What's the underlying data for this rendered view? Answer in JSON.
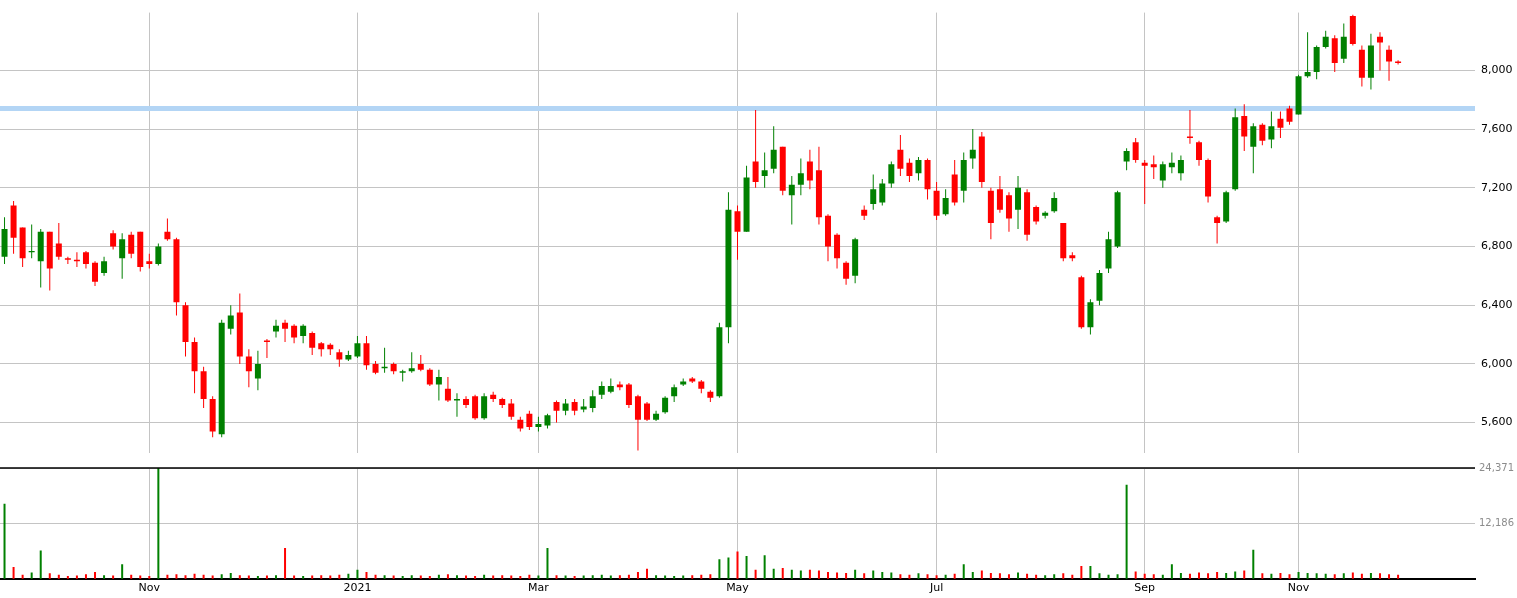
{
  "chart_data": [
    {
      "type": "candlestick",
      "categories": [
        null,
        null,
        null,
        null,
        null,
        null,
        null,
        null,
        null,
        null,
        null,
        null,
        null,
        null,
        null,
        null,
        null,
        null,
        null,
        null,
        null,
        null,
        null,
        null,
        null,
        null,
        null,
        null,
        null,
        null,
        null,
        null,
        null,
        null,
        null,
        null,
        null,
        null,
        null,
        null,
        null,
        null,
        null,
        null,
        null,
        null,
        null,
        null,
        null,
        null,
        null,
        null,
        null,
        null,
        null,
        null,
        null,
        null,
        null,
        null,
        null,
        null,
        null,
        null,
        null,
        null,
        null,
        null,
        null,
        null,
        null,
        null,
        null,
        null,
        null,
        null,
        null,
        null,
        null,
        null,
        null,
        null,
        null,
        null,
        null,
        null,
        null,
        null,
        null,
        null,
        null,
        null,
        null,
        null,
        null,
        null,
        null,
        null,
        null,
        null,
        null,
        null,
        null,
        null,
        null,
        null,
        null,
        null,
        null,
        null,
        null,
        null,
        null,
        null,
        null,
        null,
        null,
        null,
        null,
        null,
        null,
        null,
        null,
        null,
        null,
        null,
        null,
        null,
        null,
        null,
        null,
        null,
        null,
        null,
        null,
        null,
        null,
        null,
        null,
        null,
        null,
        null,
        null,
        null,
        null,
        null,
        null,
        null,
        null,
        null,
        null,
        null,
        null,
        null,
        null,
        null,
        null,
        null,
        null,
        null,
        null,
        null,
        null
      ],
      "ohlc": [
        [
          6730,
          7000,
          6680,
          6920
        ],
        [
          7080,
          7110,
          6750,
          6860
        ],
        [
          6930,
          6930,
          6660,
          6720
        ],
        [
          6760,
          6950,
          6720,
          6770
        ],
        [
          6700,
          6920,
          6520,
          6900
        ],
        [
          6900,
          6900,
          6500,
          6650
        ],
        [
          6820,
          6960,
          6710,
          6730
        ],
        [
          6720,
          6730,
          6680,
          6710
        ],
        [
          6710,
          6760,
          6660,
          6700
        ],
        [
          6760,
          6770,
          6650,
          6680
        ],
        [
          6690,
          6700,
          6530,
          6560
        ],
        [
          6620,
          6730,
          6600,
          6700
        ],
        [
          6890,
          6910,
          6780,
          6800
        ],
        [
          6720,
          6890,
          6580,
          6850
        ],
        [
          6880,
          6900,
          6720,
          6750
        ],
        [
          6900,
          6900,
          6630,
          6660
        ],
        [
          6700,
          6750,
          6650,
          6680
        ],
        [
          6680,
          6820,
          6670,
          6800
        ],
        [
          6900,
          6990,
          6840,
          6850
        ],
        [
          6850,
          6860,
          6330,
          6420
        ],
        [
          6400,
          6420,
          6050,
          6150
        ],
        [
          6150,
          6180,
          5800,
          5950
        ],
        [
          5950,
          5980,
          5700,
          5760
        ],
        [
          5760,
          5780,
          5500,
          5540
        ],
        [
          5520,
          6300,
          5500,
          6280
        ],
        [
          6240,
          6400,
          6200,
          6330
        ],
        [
          6350,
          6480,
          6000,
          6050
        ],
        [
          6050,
          6100,
          5840,
          5950
        ],
        [
          5900,
          6090,
          5820,
          6000
        ],
        [
          6160,
          6170,
          6040,
          6150
        ],
        [
          6220,
          6300,
          6180,
          6260
        ],
        [
          6280,
          6300,
          6150,
          6240
        ],
        [
          6260,
          6270,
          6140,
          6180
        ],
        [
          6190,
          6270,
          6140,
          6260
        ],
        [
          6210,
          6220,
          6060,
          6110
        ],
        [
          6140,
          6150,
          6050,
          6100
        ],
        [
          6130,
          6140,
          6060,
          6100
        ],
        [
          6080,
          6100,
          5980,
          6030
        ],
        [
          6030,
          6090,
          6020,
          6060
        ],
        [
          6050,
          6190,
          6040,
          6140
        ],
        [
          6140,
          6190,
          5960,
          5990
        ],
        [
          6000,
          6020,
          5930,
          5940
        ],
        [
          5970,
          6110,
          5940,
          5980
        ],
        [
          6000,
          6010,
          5930,
          5950
        ],
        [
          5940,
          5960,
          5880,
          5950
        ],
        [
          5950,
          6080,
          5940,
          5970
        ],
        [
          6000,
          6060,
          5950,
          5960
        ],
        [
          5960,
          5970,
          5850,
          5860
        ],
        [
          5860,
          5960,
          5750,
          5910
        ],
        [
          5830,
          5910,
          5740,
          5750
        ],
        [
          5750,
          5800,
          5640,
          5760
        ],
        [
          5760,
          5780,
          5700,
          5720
        ],
        [
          5780,
          5790,
          5620,
          5630
        ],
        [
          5630,
          5800,
          5620,
          5780
        ],
        [
          5790,
          5810,
          5740,
          5760
        ],
        [
          5760,
          5770,
          5700,
          5720
        ],
        [
          5730,
          5760,
          5620,
          5640
        ],
        [
          5620,
          5640,
          5540,
          5560
        ],
        [
          5660,
          5680,
          5550,
          5570
        ],
        [
          5570,
          5640,
          5540,
          5590
        ],
        [
          5580,
          5660,
          5560,
          5650
        ],
        [
          5740,
          5750,
          5600,
          5680
        ],
        [
          5680,
          5760,
          5650,
          5730
        ],
        [
          5740,
          5760,
          5650,
          5680
        ],
        [
          5690,
          5760,
          5670,
          5710
        ],
        [
          5700,
          5820,
          5670,
          5780
        ],
        [
          5790,
          5880,
          5760,
          5850
        ],
        [
          5810,
          5900,
          5800,
          5850
        ],
        [
          5860,
          5880,
          5820,
          5840
        ],
        [
          5860,
          5870,
          5700,
          5720
        ],
        [
          5780,
          5790,
          5410,
          5620
        ],
        [
          5730,
          5740,
          5610,
          5620
        ],
        [
          5620,
          5680,
          5610,
          5660
        ],
        [
          5670,
          5780,
          5660,
          5770
        ],
        [
          5780,
          5860,
          5740,
          5840
        ],
        [
          5860,
          5900,
          5850,
          5880
        ],
        [
          5900,
          5910,
          5870,
          5880
        ],
        [
          5880,
          5890,
          5800,
          5830
        ],
        [
          5810,
          5820,
          5740,
          5770
        ],
        [
          5780,
          6280,
          5770,
          6250
        ],
        [
          6250,
          7170,
          6140,
          7050
        ],
        [
          7040,
          7080,
          6710,
          6900
        ],
        [
          6900,
          7350,
          6900,
          7270
        ],
        [
          7380,
          7730,
          7200,
          7240
        ],
        [
          7280,
          7440,
          7200,
          7320
        ],
        [
          7330,
          7620,
          7300,
          7460
        ],
        [
          7480,
          7480,
          7150,
          7180
        ],
        [
          7150,
          7280,
          6950,
          7220
        ],
        [
          7220,
          7400,
          7150,
          7300
        ],
        [
          7380,
          7460,
          7190,
          7250
        ],
        [
          7320,
          7480,
          6950,
          7000
        ],
        [
          7010,
          7020,
          6700,
          6800
        ],
        [
          6880,
          6890,
          6650,
          6720
        ],
        [
          6690,
          6700,
          6540,
          6580
        ],
        [
          6600,
          6860,
          6550,
          6850
        ],
        [
          7050,
          7080,
          6980,
          7010
        ],
        [
          7090,
          7290,
          7050,
          7190
        ],
        [
          7100,
          7260,
          7080,
          7230
        ],
        [
          7230,
          7380,
          7200,
          7360
        ],
        [
          7460,
          7560,
          7280,
          7330
        ],
        [
          7370,
          7400,
          7240,
          7280
        ],
        [
          7300,
          7410,
          7250,
          7390
        ],
        [
          7390,
          7400,
          7120,
          7190
        ],
        [
          7180,
          7240,
          6980,
          7010
        ],
        [
          7020,
          7190,
          7010,
          7130
        ],
        [
          7290,
          7390,
          7080,
          7100
        ],
        [
          7180,
          7440,
          7100,
          7390
        ],
        [
          7400,
          7600,
          7330,
          7460
        ],
        [
          7550,
          7580,
          7200,
          7240
        ],
        [
          7180,
          7200,
          6850,
          6960
        ],
        [
          7190,
          7280,
          7030,
          7050
        ],
        [
          7150,
          7170,
          6900,
          6990
        ],
        [
          7050,
          7280,
          6920,
          7200
        ],
        [
          7170,
          7190,
          6840,
          6880
        ],
        [
          7070,
          7080,
          6950,
          6970
        ],
        [
          7010,
          7040,
          6990,
          7030
        ],
        [
          7040,
          7170,
          7030,
          7130
        ],
        [
          6960,
          6960,
          6700,
          6720
        ],
        [
          6740,
          6760,
          6700,
          6720
        ],
        [
          6590,
          6600,
          6240,
          6250
        ],
        [
          6250,
          6440,
          6200,
          6420
        ],
        [
          6430,
          6640,
          6400,
          6620
        ],
        [
          6650,
          6900,
          6620,
          6850
        ],
        [
          6800,
          7180,
          6790,
          7170
        ],
        [
          7380,
          7470,
          7320,
          7450
        ],
        [
          7510,
          7540,
          7370,
          7390
        ],
        [
          7370,
          7390,
          7090,
          7350
        ],
        [
          7360,
          7420,
          7260,
          7340
        ],
        [
          7250,
          7380,
          7200,
          7360
        ],
        [
          7340,
          7440,
          7300,
          7370
        ],
        [
          7300,
          7420,
          7250,
          7390
        ],
        [
          7550,
          7730,
          7500,
          7540
        ],
        [
          7510,
          7520,
          7350,
          7390
        ],
        [
          7390,
          7400,
          7100,
          7140
        ],
        [
          7000,
          7010,
          6820,
          6960
        ],
        [
          6970,
          7180,
          6960,
          7170
        ],
        [
          7190,
          7740,
          7180,
          7680
        ],
        [
          7690,
          7770,
          7450,
          7550
        ],
        [
          7480,
          7640,
          7300,
          7620
        ],
        [
          7630,
          7640,
          7490,
          7520
        ],
        [
          7530,
          7720,
          7470,
          7620
        ],
        [
          7670,
          7720,
          7540,
          7610
        ],
        [
          7740,
          7760,
          7630,
          7650
        ],
        [
          7700,
          7970,
          7700,
          7960
        ],
        [
          7960,
          8260,
          7950,
          7990
        ],
        [
          7990,
          8170,
          7940,
          8160
        ],
        [
          8160,
          8270,
          8150,
          8230
        ],
        [
          8220,
          8240,
          7990,
          8050
        ],
        [
          8080,
          8320,
          8050,
          8230
        ],
        [
          8370,
          8380,
          8170,
          8180
        ],
        [
          8140,
          8170,
          7890,
          7950
        ],
        [
          7950,
          8250,
          7870,
          8170
        ],
        [
          8230,
          8260,
          8000,
          8190
        ],
        [
          8140,
          8170,
          7930,
          8060
        ],
        [
          8060,
          8070,
          8040,
          8050
        ],
        null,
        null,
        null,
        null,
        null,
        null,
        null,
        null
      ],
      "colors": [
        "#008000",
        "#ff0000",
        "#ff0000",
        "#008000",
        "#008000",
        "#ff0000",
        "#ff0000",
        "#ff0000",
        "#ff0000",
        "#ff0000",
        "#ff0000",
        "#008000",
        "#ff0000",
        "#008000",
        "#ff0000",
        "#ff0000",
        "#ff0000",
        "#008000",
        "#ff0000",
        "#ff0000",
        "#ff0000",
        "#ff0000",
        "#ff0000",
        "#ff0000",
        "#008000",
        "#008000",
        "#ff0000",
        "#ff0000",
        "#008000",
        "#ff0000",
        "#008000",
        "#ff0000",
        "#ff0000",
        "#008000",
        "#ff0000",
        "#ff0000",
        "#ff0000",
        "#ff0000",
        "#008000",
        "#008000",
        "#ff0000",
        "#ff0000",
        "#008000",
        "#ff0000",
        "#008000",
        "#008000",
        "#ff0000",
        "#ff0000",
        "#008000",
        "#ff0000",
        "#008000",
        "#ff0000",
        "#ff0000",
        "#008000",
        "#ff0000",
        "#ff0000",
        "#ff0000",
        "#ff0000",
        "#ff0000",
        "#008000",
        "#008000",
        "#ff0000",
        "#008000",
        "#ff0000",
        "#008000",
        "#008000",
        "#008000",
        "#008000",
        "#ff0000",
        "#ff0000",
        "#ff0000",
        "#ff0000",
        "#008000",
        "#008000",
        "#008000",
        "#008000",
        "#ff0000",
        "#ff0000",
        "#ff0000",
        "#008000",
        "#008000",
        "#ff0000",
        "#008000",
        "#ff0000",
        "#008000",
        "#008000",
        "#ff0000",
        "#008000",
        "#008000",
        "#ff0000",
        "#ff0000",
        "#ff0000",
        "#ff0000",
        "#ff0000",
        "#008000",
        "#ff0000",
        "#008000",
        "#008000",
        "#008000",
        "#ff0000",
        "#ff0000",
        "#008000",
        "#ff0000",
        "#ff0000",
        "#008000",
        "#ff0000",
        "#008000",
        "#008000",
        "#ff0000",
        "#ff0000",
        "#ff0000",
        "#ff0000",
        "#008000",
        "#ff0000",
        "#ff0000",
        "#008000",
        "#008000",
        "#ff0000",
        "#ff0000",
        "#ff0000",
        "#008000",
        "#008000",
        "#008000",
        "#008000",
        "#008000",
        "#ff0000",
        "#ff0000",
        "#ff0000",
        "#008000",
        "#008000",
        "#008000",
        "#ff0000",
        "#ff0000",
        "#ff0000",
        "#ff0000",
        "#008000",
        "#008000",
        "#ff0000",
        "#008000",
        "#ff0000",
        "#008000",
        "#ff0000",
        "#ff0000",
        "#008000",
        "#008000",
        "#008000",
        "#008000",
        "#ff0000",
        "#008000",
        "#ff0000",
        "#ff0000",
        "#008000",
        "#ff0000",
        "#ff0000",
        "#ff0000",
        null,
        null,
        null,
        null,
        null,
        null,
        null,
        null
      ],
      "ylim": [
        5390,
        8394
      ],
      "yticks": [
        {
          "value": 5600,
          "label": "5,600"
        },
        {
          "value": 6000,
          "label": "6,000"
        },
        {
          "value": 6400,
          "label": "6,400"
        },
        {
          "value": 6800,
          "label": "6,800"
        },
        {
          "value": 7200,
          "label": "7,200"
        },
        {
          "value": 7600,
          "label": "7,600"
        },
        {
          "value": 8000,
          "label": "8,000"
        }
      ],
      "grid": true,
      "tick_labels": "y",
      "ref_lines": [
        {
          "axis": "y",
          "value": 7740,
          "color": "#b3d5f5"
        }
      ]
    },
    {
      "type": "bar",
      "categories": [
        null,
        null,
        null,
        null,
        null,
        null,
        null,
        null,
        null,
        null,
        null,
        null,
        null,
        null,
        null,
        null,
        "Nov",
        null,
        null,
        null,
        null,
        null,
        null,
        null,
        null,
        null,
        null,
        null,
        null,
        null,
        null,
        null,
        null,
        null,
        null,
        null,
        null,
        null,
        null,
        "2021",
        null,
        null,
        null,
        null,
        null,
        null,
        null,
        null,
        null,
        null,
        null,
        null,
        null,
        null,
        null,
        null,
        null,
        null,
        null,
        "Mar",
        null,
        null,
        null,
        null,
        null,
        null,
        null,
        null,
        null,
        null,
        null,
        null,
        null,
        null,
        null,
        null,
        null,
        null,
        null,
        null,
        null,
        "May",
        null,
        null,
        null,
        null,
        null,
        null,
        null,
        null,
        null,
        null,
        null,
        null,
        null,
        null,
        null,
        null,
        null,
        null,
        null,
        null,
        null,
        "Jul",
        null,
        null,
        null,
        null,
        null,
        null,
        null,
        null,
        null,
        null,
        null,
        null,
        null,
        null,
        null,
        null,
        null,
        null,
        null,
        null,
        null,
        null,
        "Sep",
        null,
        null,
        null,
        null,
        null,
        null,
        null,
        null,
        null,
        null,
        null,
        null,
        null,
        null,
        null,
        null,
        "Nov",
        null,
        null,
        null,
        null,
        null,
        null,
        null,
        null,
        null,
        null,
        null,
        null,
        null,
        null,
        null,
        null,
        null,
        null,
        null
      ],
      "values": [
        16500,
        2600,
        900,
        1400,
        6200,
        1200,
        900,
        600,
        700,
        1000,
        1500,
        800,
        700,
        3200,
        900,
        700,
        600,
        24371,
        900,
        1000,
        800,
        1100,
        900,
        700,
        1000,
        1300,
        800,
        700,
        600,
        700,
        800,
        6800,
        700,
        600,
        700,
        800,
        700,
        900,
        1100,
        2000,
        1500,
        900,
        800,
        700,
        600,
        800,
        700,
        600,
        900,
        1000,
        800,
        700,
        600,
        900,
        700,
        800,
        700,
        600,
        900,
        700,
        6800,
        800,
        700,
        600,
        700,
        800,
        900,
        700,
        800,
        900,
        1500,
        2200,
        800,
        700,
        600,
        700,
        800,
        900,
        1000,
        4300,
        4700,
        6000,
        5000,
        2000,
        5200,
        2200,
        2400,
        2000,
        1800,
        2000,
        1800,
        1500,
        1400,
        1300,
        2000,
        1200,
        1800,
        1500,
        1400,
        1000,
        900,
        1200,
        1000,
        800,
        900,
        1100,
        3200,
        1500,
        1800,
        1300,
        1200,
        1000,
        1400,
        1100,
        900,
        800,
        1000,
        1200,
        900,
        2800,
        2800,
        1200,
        900,
        1000,
        20700,
        1600,
        1100,
        1000,
        900,
        3200,
        1300,
        1100,
        1400,
        1200,
        1500,
        1300,
        1600,
        1800,
        6400,
        1200,
        1100,
        1300,
        1000,
        1500,
        1300,
        1200,
        1100,
        1000,
        1200,
        1400,
        1100,
        1300,
        1200,
        1000,
        900,
        null,
        null,
        null,
        null,
        null,
        null,
        null,
        null
      ],
      "colors": [
        "#008000",
        "#ff0000",
        "#ff0000",
        "#008000",
        "#008000",
        "#ff0000",
        "#ff0000",
        "#ff0000",
        "#ff0000",
        "#ff0000",
        "#ff0000",
        "#008000",
        "#ff0000",
        "#008000",
        "#ff0000",
        "#ff0000",
        "#ff0000",
        "#008000",
        "#ff0000",
        "#ff0000",
        "#ff0000",
        "#ff0000",
        "#ff0000",
        "#ff0000",
        "#008000",
        "#008000",
        "#ff0000",
        "#ff0000",
        "#008000",
        "#ff0000",
        "#008000",
        "#ff0000",
        "#ff0000",
        "#008000",
        "#ff0000",
        "#ff0000",
        "#ff0000",
        "#ff0000",
        "#008000",
        "#008000",
        "#ff0000",
        "#ff0000",
        "#008000",
        "#ff0000",
        "#008000",
        "#008000",
        "#ff0000",
        "#ff0000",
        "#008000",
        "#ff0000",
        "#008000",
        "#ff0000",
        "#ff0000",
        "#008000",
        "#ff0000",
        "#ff0000",
        "#ff0000",
        "#ff0000",
        "#ff0000",
        "#008000",
        "#008000",
        "#ff0000",
        "#008000",
        "#ff0000",
        "#008000",
        "#008000",
        "#008000",
        "#008000",
        "#ff0000",
        "#ff0000",
        "#ff0000",
        "#ff0000",
        "#008000",
        "#008000",
        "#008000",
        "#008000",
        "#ff0000",
        "#ff0000",
        "#ff0000",
        "#008000",
        "#008000",
        "#ff0000",
        "#008000",
        "#ff0000",
        "#008000",
        "#008000",
        "#ff0000",
        "#008000",
        "#008000",
        "#ff0000",
        "#ff0000",
        "#ff0000",
        "#ff0000",
        "#ff0000",
        "#008000",
        "#ff0000",
        "#008000",
        "#008000",
        "#008000",
        "#ff0000",
        "#ff0000",
        "#008000",
        "#ff0000",
        "#ff0000",
        "#008000",
        "#ff0000",
        "#008000",
        "#008000",
        "#ff0000",
        "#ff0000",
        "#ff0000",
        "#ff0000",
        "#008000",
        "#ff0000",
        "#ff0000",
        "#008000",
        "#008000",
        "#ff0000",
        "#ff0000",
        "#ff0000",
        "#008000",
        "#008000",
        "#008000",
        "#008000",
        "#008000",
        "#ff0000",
        "#ff0000",
        "#ff0000",
        "#008000",
        "#008000",
        "#008000",
        "#ff0000",
        "#ff0000",
        "#ff0000",
        "#ff0000",
        "#008000",
        "#008000",
        "#ff0000",
        "#008000",
        "#ff0000",
        "#008000",
        "#ff0000",
        "#ff0000",
        "#008000",
        "#008000",
        "#008000",
        "#008000",
        "#ff0000",
        "#008000",
        "#ff0000",
        "#ff0000",
        "#008000",
        "#ff0000",
        "#ff0000",
        "#ff0000",
        null,
        null,
        null,
        null,
        null,
        null,
        null,
        null
      ],
      "ylim": [
        0,
        24371
      ],
      "yticks": [
        {
          "value": 12186,
          "label": "12,186"
        },
        {
          "value": 24371,
          "label": "24,371"
        }
      ],
      "grid": true
    }
  ]
}
